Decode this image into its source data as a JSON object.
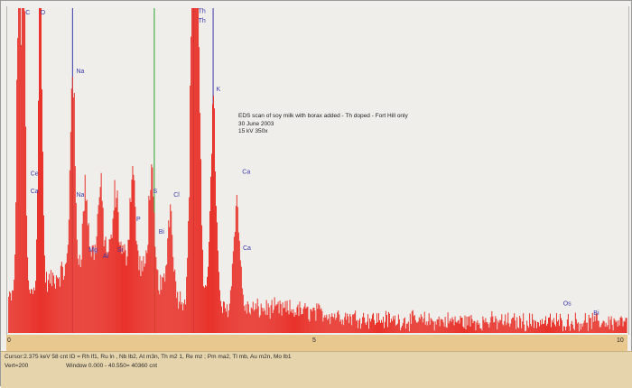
{
  "chart_data": {
    "type": "bar",
    "title": "EDS scan of soy milk with borax added - Th doped - Fort Hill only",
    "subtitle_lines": [
      "30 June 2003",
      "15 kV 350x"
    ],
    "xlabel": "",
    "ylabel": "",
    "xlim": [
      0,
      10
    ],
    "ylim": [
      0,
      200
    ],
    "x_ticks": [
      0,
      5,
      10
    ],
    "peaks": [
      {
        "x": 0.17,
        "y": 200
      },
      {
        "x": 0.25,
        "y": 200
      },
      {
        "x": 0.52,
        "y": 200
      },
      {
        "x": 1.04,
        "y": 126
      },
      {
        "x": 1.25,
        "y": 42
      },
      {
        "x": 1.49,
        "y": 38
      },
      {
        "x": 1.74,
        "y": 38
      },
      {
        "x": 2.01,
        "y": 58
      },
      {
        "x": 2.31,
        "y": 62
      },
      {
        "x": 2.62,
        "y": 52
      },
      {
        "x": 2.99,
        "y": 200
      },
      {
        "x": 3.05,
        "y": 196
      },
      {
        "x": 3.31,
        "y": 121
      },
      {
        "x": 3.69,
        "y": 67
      }
    ],
    "element_labels": [
      {
        "text": "C",
        "x": 0.28,
        "y": 196
      },
      {
        "text": "O",
        "x": 0.52,
        "y": 196
      },
      {
        "text": "Na",
        "x": 1.1,
        "y": 160
      },
      {
        "text": "Ce",
        "x": 0.36,
        "y": 97
      },
      {
        "text": "Ca",
        "x": 0.36,
        "y": 86
      },
      {
        "text": "Na",
        "x": 1.1,
        "y": 84
      },
      {
        "text": "Mg",
        "x": 1.3,
        "y": 50
      },
      {
        "text": "Al",
        "x": 1.53,
        "y": 46
      },
      {
        "text": "Si",
        "x": 1.76,
        "y": 50
      },
      {
        "text": "P",
        "x": 2.07,
        "y": 69
      },
      {
        "text": "S",
        "x": 2.34,
        "y": 86
      },
      {
        "text": "Cl",
        "x": 2.67,
        "y": 84
      },
      {
        "text": "Bi",
        "x": 2.43,
        "y": 61
      },
      {
        "text": "Th",
        "x": 3.07,
        "y": 197
      },
      {
        "text": "Th",
        "x": 3.07,
        "y": 191
      },
      {
        "text": "K",
        "x": 3.36,
        "y": 149
      },
      {
        "text": "Ca",
        "x": 3.78,
        "y": 98
      },
      {
        "text": "Ca",
        "x": 3.79,
        "y": 51
      },
      {
        "text": "Os",
        "x": 8.96,
        "y": 17
      },
      {
        "text": "Bi",
        "x": 9.45,
        "y": 11
      }
    ],
    "marker_lines": [
      {
        "x": 2.36,
        "color": "#29a329"
      },
      {
        "x": 1.04,
        "color": "#3a3aa8"
      },
      {
        "x": 2.99,
        "color": "#3a3aa8"
      },
      {
        "x": 3.31,
        "color": "#3a3aa8"
      }
    ],
    "colors": {
      "fill": "#e8322a",
      "stroke": "#c51f19",
      "marker": "#3a3aa8",
      "cursor": "#29a329"
    }
  },
  "status": {
    "line1": "Cursor:2.375 keV  58 cnt  ID = Rh lf1, Ru ln , Nb lb2, At m3n, Th m2 1, Re mz ; Pm ma2, Tl mb, Au m2n, Mo lb1",
    "line2_left": "Vert=200",
    "line2_right": "Window 0.000 - 40.550=   40360 cnt"
  }
}
